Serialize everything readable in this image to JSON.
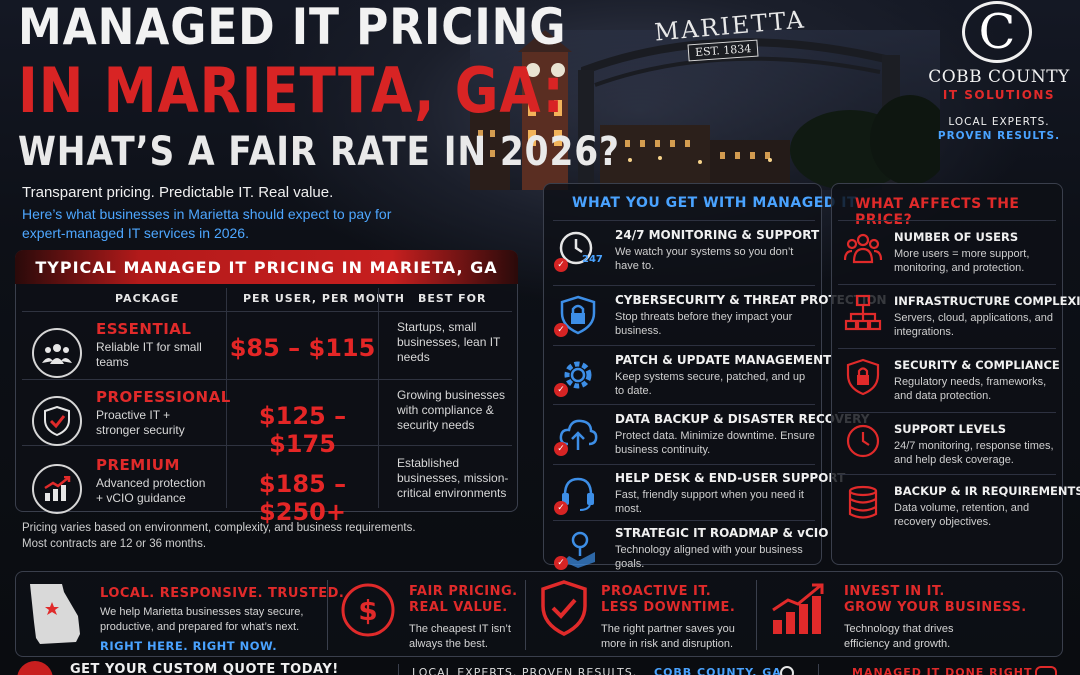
{
  "headline": {
    "line1": "MANAGED IT PRICING",
    "line2": "IN MARIETTA, GA:",
    "line3": "WHAT’S A FAIR RATE IN 2026?",
    "sub1": "Transparent pricing. Predictable IT. Real value.",
    "sub2": "Here’s what businesses in Marietta should expect to pay for expert-managed IT services in 2026."
  },
  "arch": {
    "sign": "MARIETTA",
    "est": "EST. 1834"
  },
  "brand": {
    "letter": "C",
    "name": "COBB COUNTY",
    "tag": "IT SOLUTIONS",
    "slogan1": "LOCAL EXPERTS.",
    "slogan2": "PROVEN RESULTS."
  },
  "pricing": {
    "title": "TYPICAL MANAGED IT PRICING IN MARIETA, GA",
    "headers": [
      "PACKAGE",
      "PER USER, PER MONTH",
      "BEST FOR"
    ],
    "rows": [
      {
        "name": "ESSENTIAL",
        "desc": "Reliable IT for small teams",
        "price": "$85 – $115",
        "best": "Startups, small businesses, lean IT needs",
        "icon": "team-icon"
      },
      {
        "name": "PROFESSIONAL",
        "desc": "Proactive IT + stronger security",
        "price": "$125 – $175",
        "best": "Growing businesses with compliance & security needs",
        "icon": "shield-check-icon"
      },
      {
        "name": "PREMIUM",
        "desc": "Advanced protection + vCIO guidance",
        "price": "$185 – $250+",
        "best": "Established businesses, mission-critical environments",
        "icon": "growth-chart-icon"
      }
    ],
    "note1": "Pricing varies based on environment, complexity, and business requirements.",
    "note2": "Most contracts are 12 or 36 months."
  },
  "what_you_get": {
    "title": "WHAT YOU GET WITH MANAGED IT",
    "items": [
      {
        "title": "24/7 MONITORING & SUPPORT",
        "desc": "We watch your systems so you don’t have to.",
        "icon": "clock-247-icon",
        "badge": "247"
      },
      {
        "title": "CYBERSECURITY & THREAT PROTECTION",
        "desc": "Stop threats before they impact your business.",
        "icon": "lock-shield-icon"
      },
      {
        "title": "PATCH & UPDATE MANAGEMENT",
        "desc": "Keep systems secure, patched, and up to date.",
        "icon": "gear-icon"
      },
      {
        "title": "DATA BACKUP & DISASTER RECOVERY",
        "desc": "Protect data. Minimize downtime. Ensure business continuity.",
        "icon": "cloud-upload-icon"
      },
      {
        "title": "HELP DESK & END-USER SUPPORT",
        "desc": "Fast, friendly support when you need it most.",
        "icon": "headset-icon"
      },
      {
        "title": "STRATEGIC IT ROADMAP & vCIO",
        "desc": "Technology aligned with your business goals.",
        "icon": "roadmap-icon"
      }
    ]
  },
  "price_factors": {
    "title": "WHAT AFFECTS THE PRICE?",
    "items": [
      {
        "title": "NUMBER OF USERS",
        "desc": "More users = more support, monitoring, and protection.",
        "icon": "users-icon"
      },
      {
        "title": "INFRASTRUCTURE COMPLEXITY",
        "desc": "Servers, cloud, applications, and integrations.",
        "icon": "network-icon"
      },
      {
        "title": "SECURITY & COMPLIANCE",
        "desc": "Regulatory needs, frameworks, and data protection.",
        "icon": "lock-icon"
      },
      {
        "title": "SUPPORT LEVELS",
        "desc": "24/7 monitoring, response times, and help desk coverage.",
        "icon": "clock-icon"
      },
      {
        "title": "BACKUP & IR REQUIREMENTS",
        "desc": "Data volume, retention, and recovery objectives.",
        "icon": "database-icon"
      }
    ]
  },
  "bottom": [
    {
      "title": "LOCAL. RESPONSIVE. TRUSTED.",
      "desc": "We help Marietta businesses stay secure, productive, and prepared for what’s next.",
      "cta": "RIGHT HERE. RIGHT NOW.",
      "icon": "georgia-map-icon"
    },
    {
      "title1": "FAIR PRICING.",
      "title2": "REAL VALUE.",
      "desc": "The cheapest IT isn’t always the best.",
      "icon": "dollar-icon"
    },
    {
      "title1": "PROACTIVE IT.",
      "title2": "LESS DOWNTIME.",
      "desc": "The right partner saves you more in risk and disruption.",
      "icon": "shield-check-icon"
    },
    {
      "title1": "INVEST IN IT.",
      "title2": "GROW YOUR BUSINESS.",
      "desc": "Technology that drives efficiency and growth.",
      "icon": "growth-chart-icon"
    }
  ],
  "footer": {
    "cta": "GET YOUR CUSTOM QUOTE TODAY!",
    "tagline": "LOCAL EXPERTS. PROVEN RESULTS.",
    "location": "COBB COUNTY, GA",
    "right": "MANAGED IT DONE RIGHT"
  },
  "colors": {
    "accent": "#e02a2a",
    "link": "#4aa3ff",
    "bg": "#0b0d12"
  }
}
